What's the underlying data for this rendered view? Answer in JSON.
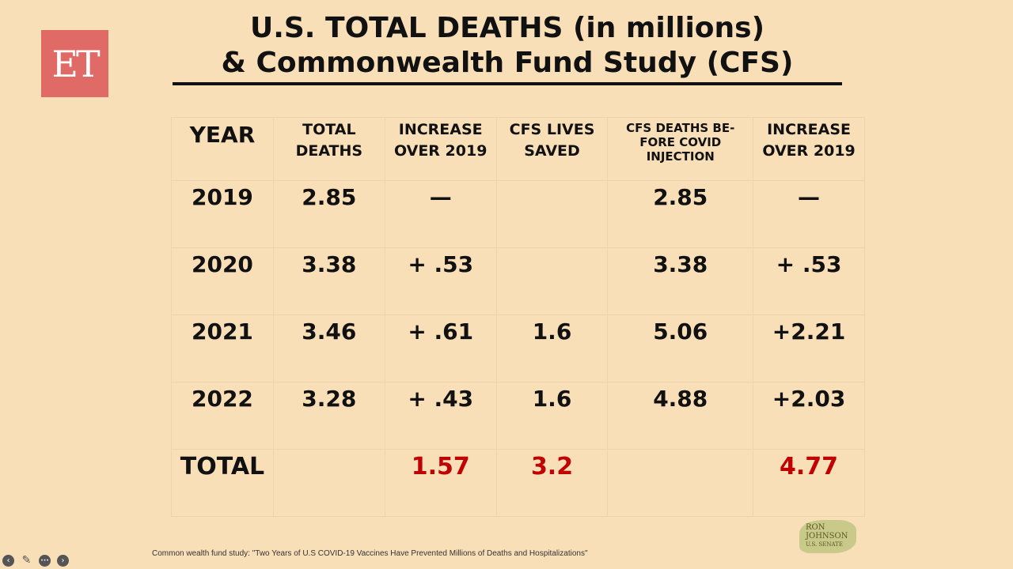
{
  "logo": "ET",
  "title": {
    "line1": "U.S. TOTAL DEATHS (in millions)",
    "line2": "& Commonwealth Fund Study (CFS)"
  },
  "headers": [
    "YEAR",
    "TOTAL DEATHS",
    "INCREASE OVER 2019",
    "CFS LIVES SAVED",
    "CFS DEATHS BE-FORE COVID INJECTION",
    "INCREASE OVER 2019"
  ],
  "rows": [
    [
      "2019",
      "2.85",
      "—",
      "",
      "2.85",
      "—"
    ],
    [
      "2020",
      "3.38",
      "+ .53",
      "",
      "3.38",
      "+ .53"
    ],
    [
      "2021",
      "3.46",
      "+ .61",
      "1.6",
      "5.06",
      "+2.21"
    ],
    [
      "2022",
      "3.28",
      "+ .43",
      "1.6",
      "4.88",
      "+2.03"
    ]
  ],
  "total": [
    "TOTAL",
    "",
    "1.57",
    "3.2",
    "",
    "4.77"
  ],
  "accent": "#c00000",
  "footnote": "Common wealth fund study: \"Two Years of U.S COVID-19 Vaccines Have Prevented Millions of Deaths and Hospitalizations\"",
  "senator_logo": {
    "line1": "RON",
    "line2": "JOHNSON",
    "line3": "U.S. SENATE"
  },
  "controls": {
    "prev": "‹",
    "pen": "✎",
    "more": "•••",
    "next": "›"
  }
}
